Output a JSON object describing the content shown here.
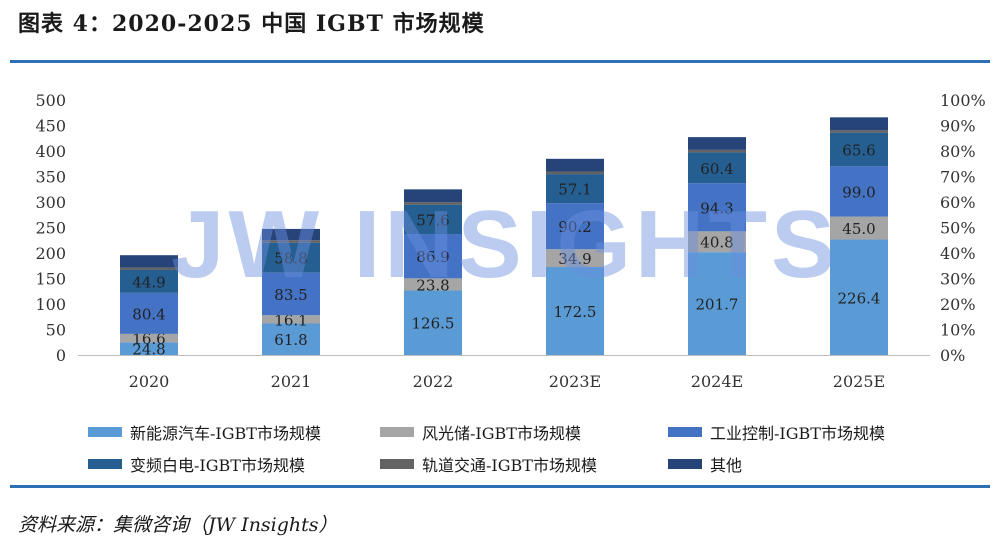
{
  "title": "图表 4：2020-2025 中国 IGBT 市场规模",
  "source": "资料来源：集微咨询（JW Insights）",
  "watermark": "JW INSIGHTS",
  "chart_data": {
    "type": "bar",
    "stacked": true,
    "categories": [
      "2020",
      "2021",
      "2022",
      "2023E",
      "2024E",
      "2025E"
    ],
    "ylim": [
      0,
      500
    ],
    "yticks": [
      0,
      50,
      100,
      150,
      200,
      250,
      300,
      350,
      400,
      450,
      500
    ],
    "y2lim": [
      0,
      100
    ],
    "y2ticks": [
      "0%",
      "10%",
      "20%",
      "30%",
      "40%",
      "50%",
      "60%",
      "70%",
      "80%",
      "90%",
      "100%"
    ],
    "legend_position": "bottom",
    "series": [
      {
        "name": "新能源汽车-IGBT市场规模",
        "color": "#5b9bd5",
        "values": [
          24.8,
          61.8,
          126.5,
          172.5,
          201.7,
          226.4
        ],
        "labeled": true
      },
      {
        "name": "风光储-IGBT市场规模",
        "color": "#a5a5a5",
        "values": [
          16.6,
          16.1,
          23.8,
          34.9,
          40.8,
          45.0
        ],
        "labeled": true
      },
      {
        "name": "工业控制-IGBT市场规模",
        "color": "#4472c4",
        "values": [
          80.4,
          83.5,
          86.9,
          90.2,
          94.3,
          99.0
        ],
        "labeled": true
      },
      {
        "name": "变频白电-IGBT市场规模",
        "color": "#255e91",
        "values": [
          44.9,
          58.8,
          57.6,
          57.1,
          60.4,
          65.6
        ],
        "labeled": true
      },
      {
        "name": "轨道交通-IGBT市场规模",
        "color": "#636363",
        "values": [
          5,
          5,
          5,
          5,
          5,
          5
        ],
        "labeled": false
      },
      {
        "name": "其他",
        "color": "#264478",
        "values": [
          24,
          22,
          25,
          25,
          25,
          25
        ],
        "labeled": false
      }
    ]
  }
}
